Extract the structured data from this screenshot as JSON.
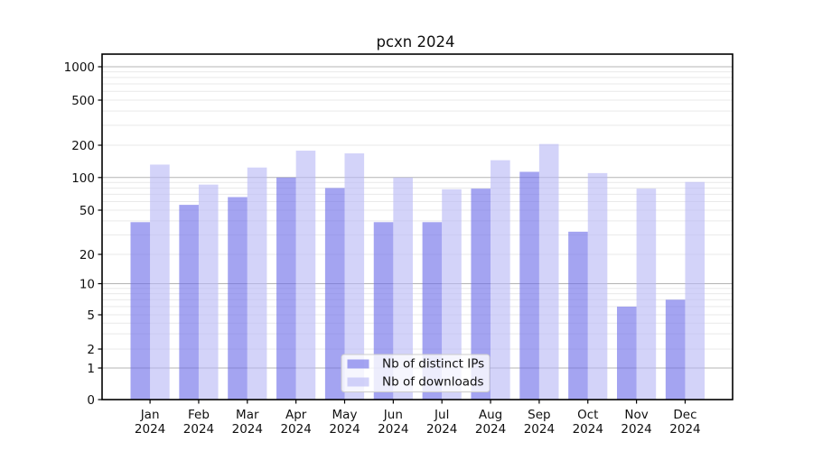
{
  "title": "pcxn 2024",
  "chart_data": {
    "type": "bar",
    "title": "pcxn 2024",
    "categories": [
      "Jan",
      "Feb",
      "Mar",
      "Apr",
      "May",
      "Jun",
      "Jul",
      "Aug",
      "Sep",
      "Oct",
      "Nov",
      "Dec"
    ],
    "year_label": "2024",
    "series": [
      {
        "name": "Nb of distinct IPs",
        "values": [
          39,
          56,
          66,
          100,
          80,
          39,
          39,
          79,
          113,
          32,
          6,
          7
        ]
      },
      {
        "name": "Nb of downloads",
        "values": [
          132,
          86,
          124,
          178,
          168,
          100,
          78,
          145,
          205,
          110,
          79,
          91
        ]
      }
    ],
    "y_axis": {
      "scale": "log-like",
      "tick_values": [
        1000,
        500,
        200,
        100,
        50,
        20,
        10,
        5,
        2,
        1,
        0
      ],
      "range": [
        0,
        1000
      ]
    },
    "x_axis": {
      "label_format": "month over year, two lines"
    },
    "legend": {
      "position": "lower-center-inside",
      "entries": [
        "Nb of distinct IPs",
        "Nb of downloads"
      ]
    },
    "grid": "on"
  },
  "colors": {
    "bar_ips": "rgba(108,108,232,0.62)",
    "bar_downloads": "rgba(184,184,246,0.62)",
    "grid_major": "#b4b4b4",
    "grid_minor": "#e9e9e9",
    "spine": "#000000",
    "legend_border": "#cccccc",
    "legend_bg": "rgba(255,255,255,0.8)"
  }
}
